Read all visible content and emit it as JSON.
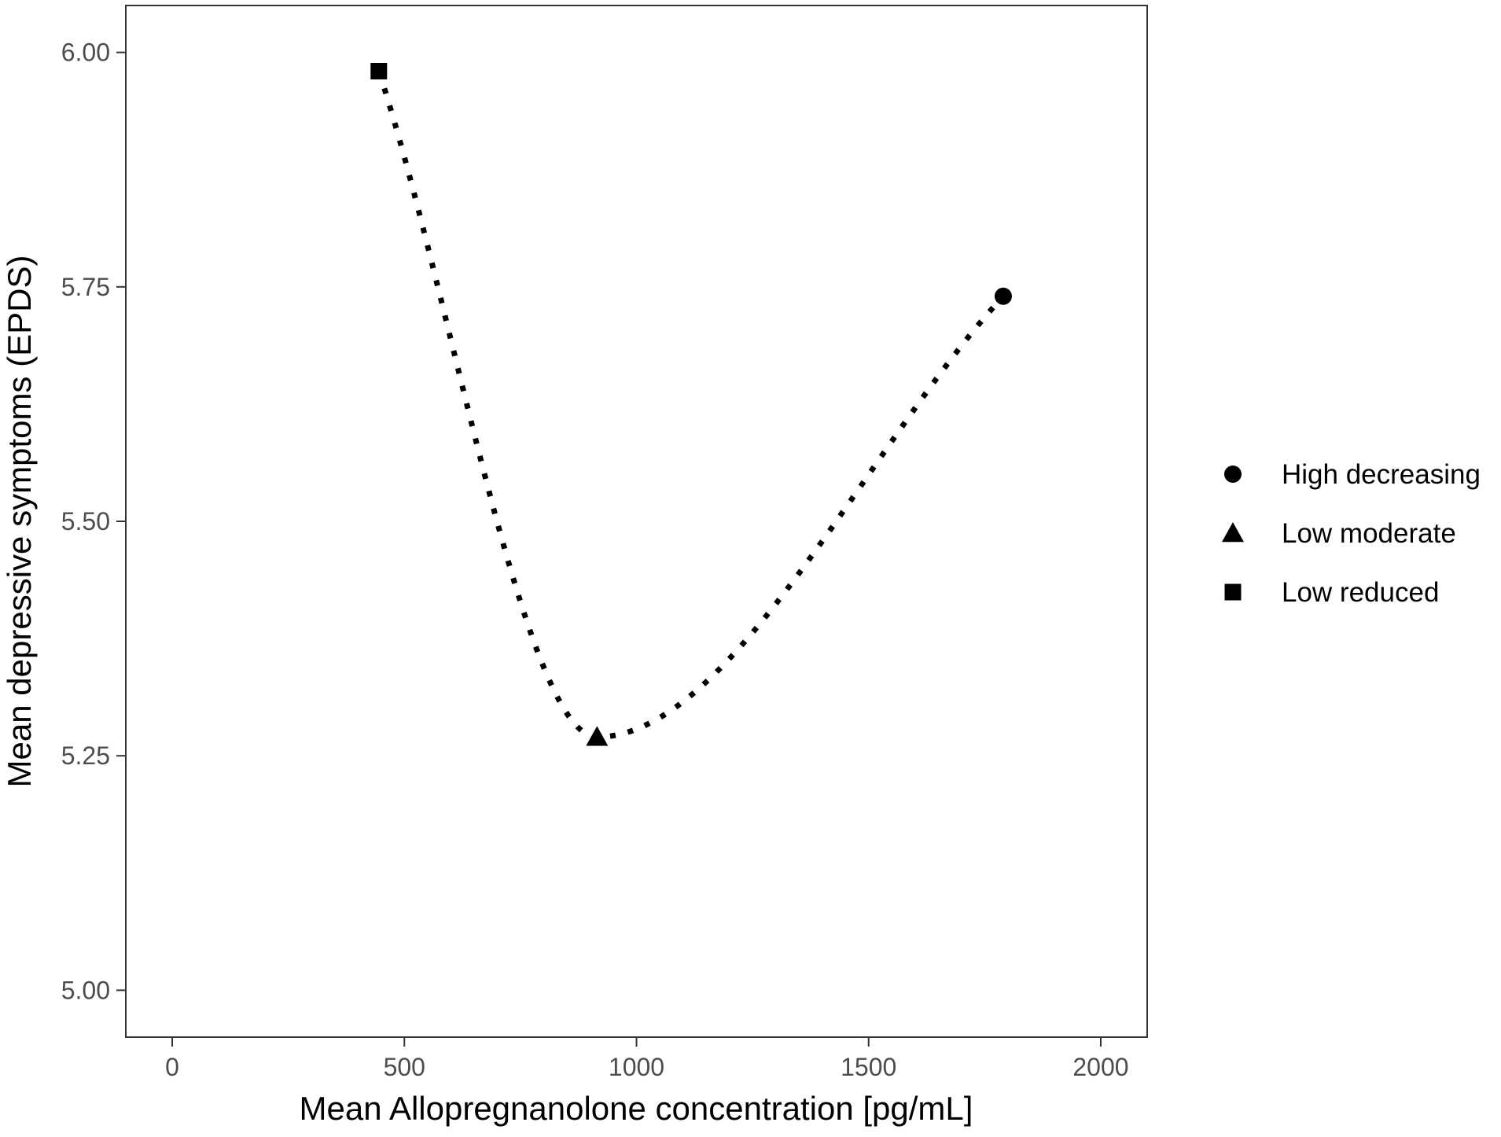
{
  "chart_data": {
    "type": "scatter",
    "title": "",
    "xlabel": "Mean Allopregnanolone concentration [pg/mL]",
    "ylabel": "Mean depressive symptoms (EPDS)",
    "xlim": [
      -100,
      2100
    ],
    "ylim": [
      4.95,
      6.05
    ],
    "x_ticks": [
      0,
      500,
      1000,
      1500,
      2000
    ],
    "x_tick_labels": [
      "0",
      "500",
      "1000",
      "1500",
      "2000"
    ],
    "y_ticks": [
      5.0,
      5.25,
      5.5,
      5.75,
      6.0
    ],
    "y_tick_labels": [
      "5.00",
      "5.25",
      "5.50",
      "5.75",
      "6.00"
    ],
    "grid": false,
    "legend_position": "right",
    "line_style": "dotted smooth curve through points",
    "series": [
      {
        "name": "High decreasing",
        "marker": "circle",
        "x": 1790,
        "y": 5.74
      },
      {
        "name": "Low moderate",
        "marker": "triangle",
        "x": 915,
        "y": 5.27
      },
      {
        "name": "Low reduced",
        "marker": "square",
        "x": 445,
        "y": 5.98
      }
    ],
    "colors": {
      "marks": "#000000",
      "axis": "#333333",
      "tick_text": "#4d4d4d"
    }
  }
}
